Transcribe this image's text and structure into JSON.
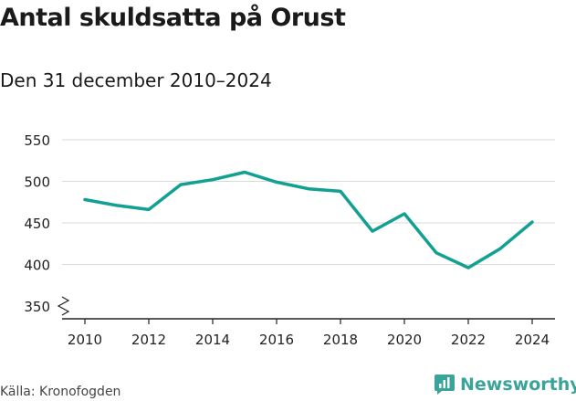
{
  "title": "Antal skuldsatta på Orust",
  "subtitle": "Den 31 december 2010–2024",
  "source": "Källa: Kronofogden",
  "brand": {
    "name": "Newsworthy",
    "icon": "newsworthy-logo-icon"
  },
  "colors": {
    "line": "#12a093",
    "grid": "#d9d9d9",
    "axis": "#222222",
    "brand": "#3aa39a"
  },
  "chart_data": {
    "type": "line",
    "x": [
      2010,
      2011,
      2012,
      2013,
      2014,
      2015,
      2016,
      2017,
      2018,
      2019,
      2020,
      2021,
      2022,
      2023,
      2024
    ],
    "values": [
      478,
      471,
      466,
      496,
      502,
      511,
      499,
      491,
      488,
      440,
      461,
      414,
      396,
      419,
      451
    ],
    "xticks": [
      "2010",
      "2012",
      "2014",
      "2016",
      "2018",
      "2020",
      "2022",
      "2024"
    ],
    "yticks": [
      "350",
      "400",
      "450",
      "500",
      "550"
    ],
    "ylim": [
      350,
      550
    ],
    "xlim": [
      2010,
      2024
    ],
    "grid": true,
    "axis_break": true
  }
}
